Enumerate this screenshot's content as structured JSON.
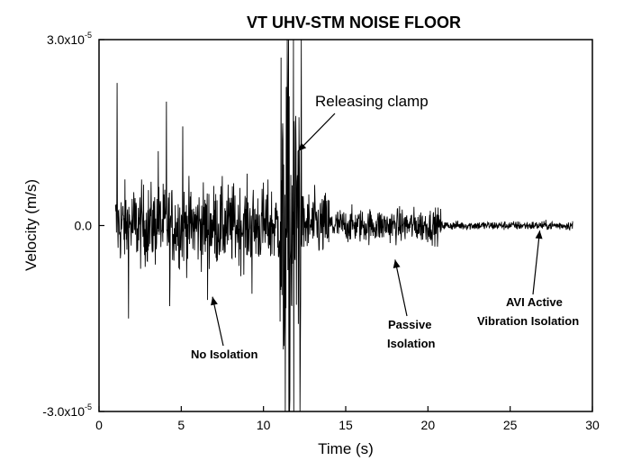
{
  "chart_data": {
    "type": "line",
    "title": "VT UHV-STM NOISE FLOOR",
    "xlabel": "Time (s)",
    "ylabel": "Velocity (m/s)",
    "xlim": [
      0,
      30
    ],
    "ylim": [
      -3e-05,
      3e-05
    ],
    "x_ticks": [
      0,
      5,
      10,
      15,
      20,
      25,
      30
    ],
    "x_tick_labels": [
      "0",
      "5",
      "10",
      "15",
      "20",
      "25",
      "30"
    ],
    "y_ticks": [
      {
        "value": 3e-05,
        "mantissa": "3.0x10",
        "exp": "-5"
      },
      {
        "value": 0,
        "mantissa": "0.0",
        "exp": ""
      },
      {
        "value": -3e-05,
        "mantissa": "-3.0x10",
        "exp": "-5"
      }
    ],
    "grid": false,
    "legend": "none",
    "series": [
      {
        "color": "#000000",
        "x_start": 1.0,
        "x_end": 28.8,
        "samples": 1400,
        "segments": [
          {
            "x_from": 1.0,
            "x_to": 11.0,
            "amplitude": 5.5e-06
          },
          {
            "x_from": 11.0,
            "x_to": 12.3,
            "amplitude": 2.8e-05
          },
          {
            "x_from": 12.3,
            "x_to": 14.0,
            "amplitude": 4.5e-06
          },
          {
            "x_from": 14.0,
            "x_to": 20.8,
            "amplitude": 2.3e-06
          },
          {
            "x_from": 20.8,
            "x_to": 28.8,
            "amplitude": 6e-07
          }
        ],
        "peaks": [
          {
            "x": 1.1,
            "y": 2.3e-05
          },
          {
            "x": 1.8,
            "y": -1.5e-05
          },
          {
            "x": 3.6,
            "y": 1.2e-05
          },
          {
            "x": 4.1,
            "y": 2e-05
          },
          {
            "x": 4.3,
            "y": -1.3e-05
          },
          {
            "x": 5.1,
            "y": 1.6e-05
          },
          {
            "x": 6.6,
            "y": -1.2e-05
          },
          {
            "x": 9.3,
            "y": -1.1e-05
          },
          {
            "x": 11.2,
            "y": -2e-05
          },
          {
            "x": 11.45,
            "y": 3e-05
          },
          {
            "x": 11.6,
            "y": -2.8e-05
          },
          {
            "x": 11.85,
            "y": -3e-05
          },
          {
            "x": 12.1,
            "y": 1.2e-05
          }
        ]
      }
    ],
    "annotations": [
      {
        "text": "Releasing clamp",
        "style": "normal",
        "arrow_to": [
          12.1,
          1.2e-05
        ]
      },
      {
        "text": "No Isolation",
        "style": "bold",
        "arrow_to": [
          6.9,
          -1.15e-05
        ]
      },
      {
        "text": "Passive",
        "style": "bold",
        "arrow_to": [
          18.0,
          -5.5e-06
        ]
      },
      {
        "text": "Isolation",
        "style": "bold",
        "arrow_to": null
      },
      {
        "text": "AVI Active",
        "style": "bold",
        "arrow_to": [
          26.8,
          -8e-07
        ]
      },
      {
        "text": "Vibration Isolation",
        "style": "bold",
        "arrow_to": null
      }
    ]
  }
}
